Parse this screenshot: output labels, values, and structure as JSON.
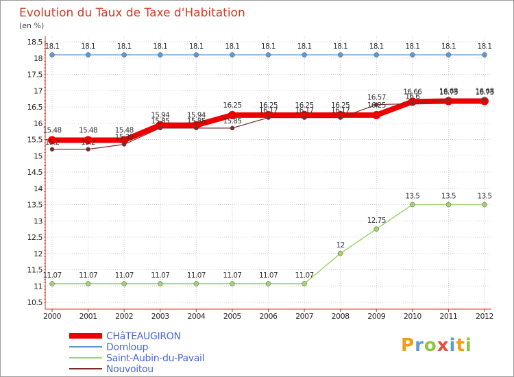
{
  "chart_data": {
    "type": "line",
    "title": "Evolution du Taux de Taxe d'Habitation",
    "unit_label": "(en %)",
    "categories": [
      "2000",
      "2001",
      "2002",
      "2003",
      "2004",
      "2005",
      "2006",
      "2007",
      "2008",
      "2009",
      "2010",
      "2011",
      "2012"
    ],
    "y_ticks": [
      "10.5",
      "11",
      "11.5",
      "12",
      "12.5",
      "13",
      "13.5",
      "14",
      "14.5",
      "15",
      "15.5",
      "16",
      "16.5",
      "17",
      "17.5",
      "18",
      "18.5"
    ],
    "ylim": [
      10.5,
      18.5
    ],
    "grid": true,
    "legend_position": "bottom-left",
    "series": [
      {
        "name": "CHâTEAUGIRON",
        "color": "#ee0000",
        "values": [
          15.48,
          15.48,
          15.48,
          15.94,
          15.94,
          16.25,
          16.25,
          16.25,
          16.25,
          16.25,
          16.66,
          16.68,
          16.68
        ],
        "labels": [
          "15.48",
          "15.48",
          "15.48",
          "15.94",
          "15.94",
          "16.25",
          "16.25",
          "16.25",
          "16.25",
          "16.25",
          "16.66",
          "16.68",
          "16.68"
        ]
      },
      {
        "name": "Domloup",
        "color": "#5b9bd5",
        "values": [
          18.1,
          18.1,
          18.1,
          18.1,
          18.1,
          18.1,
          18.1,
          18.1,
          18.1,
          18.1,
          18.1,
          18.1,
          18.1
        ],
        "labels": [
          "18.1",
          "18.1",
          "18.1",
          "18.1",
          "18.1",
          "18.1",
          "18.1",
          "18.1",
          "18.1",
          "18.1",
          "18.1",
          "18.1",
          "18.1"
        ]
      },
      {
        "name": "Saint-Aubin-du-Pavail",
        "color": "#9fd46a",
        "values": [
          11.07,
          11.07,
          11.07,
          11.07,
          11.07,
          11.07,
          11.07,
          11.07,
          12,
          12.75,
          13.5,
          13.5,
          13.5
        ],
        "labels": [
          "11.07",
          "11.07",
          "11.07",
          "11.07",
          "11.07",
          "11.07",
          "11.07",
          "11.07",
          "12",
          "12.75",
          "13.5",
          "13.5",
          "13.5"
        ]
      },
      {
        "name": "Nouvoitou",
        "color": "#7a2b2b",
        "values": [
          15.2,
          15.2,
          15.35,
          15.85,
          15.85,
          15.85,
          16.17,
          16.17,
          16.17,
          16.57,
          16.6,
          16.73,
          16.73
        ],
        "labels": [
          "15.2",
          "15.2",
          "15.35",
          "15.85",
          "15.85",
          "15.85",
          "16.17",
          "16.17",
          "16.17",
          "16.57",
          "16.6",
          "16.73",
          "16.73"
        ]
      }
    ]
  },
  "logo": {
    "text": [
      "P",
      "r",
      "o",
      "x",
      "i",
      "t",
      "i"
    ],
    "colors": [
      "#f39c12",
      "#5b9bd5",
      "#8cc63f",
      "#e74c3c",
      "#5b9bd5",
      "#f39c12",
      "#8cc63f"
    ]
  }
}
